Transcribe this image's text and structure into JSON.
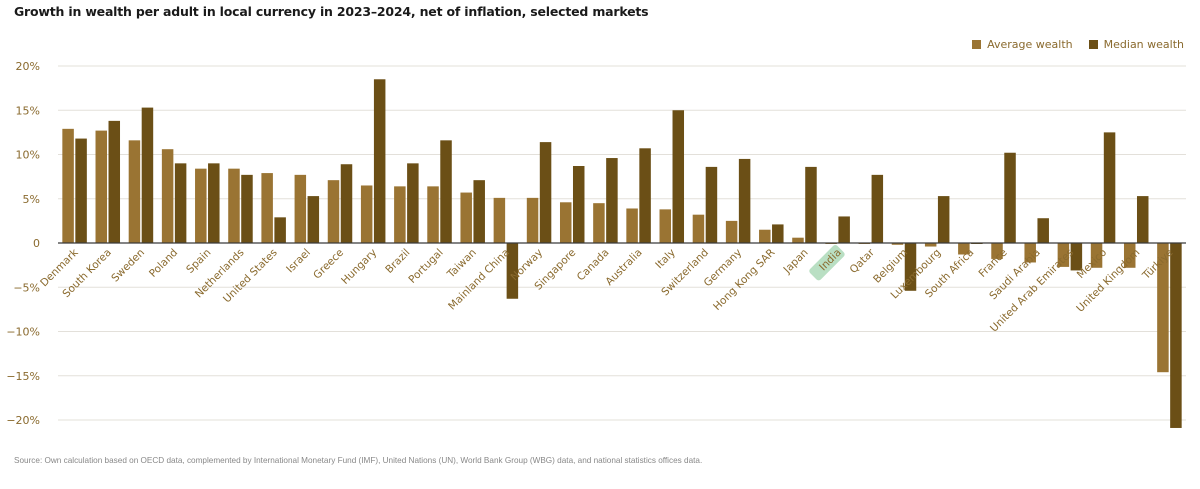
{
  "chart_data": {
    "type": "bar",
    "title": "Growth in wealth per adult in local currency in 2023–2024, net of inflation, selected markets",
    "xlabel": "",
    "ylabel": "",
    "ylim": [
      -20,
      20
    ],
    "yticks": [
      20,
      15,
      10,
      5,
      0,
      -5,
      -10,
      -15,
      -20
    ],
    "ytick_labels": [
      "20%",
      "15%",
      "10%",
      "5%",
      "0",
      "−5%",
      "−10%",
      "−15%",
      "−20%"
    ],
    "grid": true,
    "legend_position": "top-right",
    "highlighted_category": "India",
    "categories": [
      "Denmark",
      "South Korea",
      "Sweden",
      "Poland",
      "Spain",
      "Netherlands",
      "United States",
      "Israel",
      "Greece",
      "Hungary",
      "Brazil",
      "Portugal",
      "Taiwan",
      "Mainland China",
      "Norway",
      "Singapore",
      "Canada",
      "Australia",
      "Italy",
      "Switzerland",
      "Germany",
      "Hong Kong SAR",
      "Japan",
      "India",
      "Qatar",
      "Belgium",
      "Luxembourg",
      "South Africa",
      "France",
      "Saudi Arabia",
      "United Arab Emirates",
      "Mexico",
      "United Kingdom",
      "Türkiye"
    ],
    "series": [
      {
        "name": "Average wealth",
        "color": "#9a7433",
        "values": [
          12.9,
          12.7,
          11.6,
          10.6,
          8.4,
          8.4,
          7.9,
          7.7,
          7.1,
          6.5,
          6.4,
          6.4,
          5.7,
          5.1,
          5.1,
          4.6,
          4.5,
          3.9,
          3.8,
          3.2,
          2.5,
          1.5,
          0.6,
          -0.1,
          -0.1,
          -0.2,
          -0.4,
          -1.3,
          -1.8,
          -2.2,
          -2.7,
          -2.8,
          -2.8,
          -14.6
        ]
      },
      {
        "name": "Median wealth",
        "color": "#6b4f16",
        "values": [
          11.8,
          13.8,
          15.3,
          9.0,
          9.0,
          7.7,
          2.9,
          5.3,
          8.9,
          18.5,
          9.0,
          11.6,
          7.1,
          -6.3,
          11.4,
          8.7,
          9.6,
          10.7,
          15.0,
          8.6,
          9.5,
          2.1,
          8.6,
          3.0,
          7.7,
          -5.4,
          5.3,
          -0.1,
          10.2,
          2.8,
          -3.1,
          12.5,
          5.3,
          -20.9
        ]
      }
    ],
    "source": "Source: Own calculation based on OECD data, complemented by International Monetary Fund (IMF), United Nations (UN), World Bank Group (WBG) data, and national statistics offices data."
  },
  "legend": {
    "average_label": "Average wealth",
    "median_label": "Median wealth"
  },
  "colors": {
    "average": "#9a7433",
    "median": "#6b4f16",
    "highlight": "#b9dfc3",
    "axis_text": "#8a6a2e",
    "grid": "#e3e0da"
  }
}
